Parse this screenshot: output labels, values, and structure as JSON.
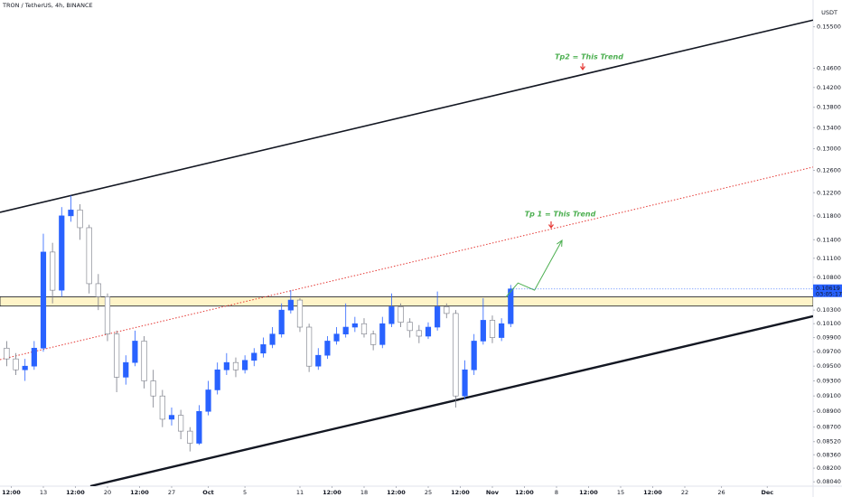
{
  "chart_data": {
    "type": "candlestick",
    "title": "TRON / TetherUS, 4h, BINANCE",
    "currency": "USDT",
    "log": true,
    "grid": false,
    "up_color": "#2962ff",
    "down_color": "#ffffff",
    "wick_color": "#787b86",
    "x": [
      9,
      10,
      11,
      12,
      13,
      14,
      15,
      16,
      17,
      18,
      19,
      20,
      21,
      22,
      23,
      24,
      25,
      26,
      27,
      28,
      29,
      30,
      31,
      32,
      33,
      34,
      35,
      36,
      37,
      38,
      39,
      40,
      41,
      42,
      43,
      44,
      45,
      46,
      47,
      48,
      49,
      50,
      51,
      52,
      53,
      54,
      55,
      56,
      57,
      58,
      59,
      60,
      61,
      62,
      63,
      64
    ],
    "open": [
      0.0975,
      0.096,
      0.0945,
      0.095,
      0.0975,
      0.112,
      0.106,
      0.118,
      0.119,
      0.116,
      0.107,
      0.105,
      0.0995,
      0.0935,
      0.0955,
      0.0985,
      0.093,
      0.091,
      0.088,
      0.0885,
      0.0865,
      0.085,
      0.089,
      0.0918,
      0.0945,
      0.0955,
      0.0945,
      0.0958,
      0.0968,
      0.098,
      0.0995,
      0.103,
      0.1045,
      0.1005,
      0.095,
      0.0965,
      0.0985,
      0.0995,
      0.1005,
      0.101,
      0.0995,
      0.098,
      0.101,
      0.1035,
      0.1012,
      0.1,
      0.0992,
      0.1005,
      0.1035,
      0.1025,
      0.091,
      0.0945,
      0.0985,
      0.1015,
      0.099,
      0.101
    ],
    "high": [
      0.0985,
      0.0968,
      0.096,
      0.0985,
      0.115,
      0.1135,
      0.1195,
      0.1215,
      0.12,
      0.1165,
      0.1085,
      0.1055,
      0.1,
      0.0965,
      0.1,
      0.0992,
      0.0945,
      0.0918,
      0.0895,
      0.0892,
      0.087,
      0.0898,
      0.093,
      0.0955,
      0.0968,
      0.0962,
      0.0965,
      0.0975,
      0.099,
      0.1005,
      0.104,
      0.106,
      0.1048,
      0.101,
      0.0975,
      0.0992,
      0.1005,
      0.104,
      0.102,
      0.1018,
      0.1,
      0.102,
      0.1055,
      0.104,
      0.1018,
      0.1008,
      0.1012,
      0.1058,
      0.104,
      0.103,
      0.0958,
      0.0995,
      0.1048,
      0.1022,
      0.1018,
      0.1068
    ],
    "low": [
      0.095,
      0.0938,
      0.093,
      0.0945,
      0.097,
      0.104,
      0.105,
      0.117,
      0.114,
      0.1055,
      0.103,
      0.0985,
      0.0915,
      0.0925,
      0.095,
      0.092,
      0.0895,
      0.087,
      0.0872,
      0.0855,
      0.084,
      0.0848,
      0.0885,
      0.0912,
      0.0938,
      0.0935,
      0.094,
      0.095,
      0.0962,
      0.0975,
      0.099,
      0.1025,
      0.0998,
      0.0942,
      0.0945,
      0.096,
      0.098,
      0.099,
      0.0998,
      0.099,
      0.0972,
      0.0975,
      0.1005,
      0.1005,
      0.099,
      0.0982,
      0.0988,
      0.1,
      0.1018,
      0.0895,
      0.0905,
      0.0938,
      0.098,
      0.0982,
      0.0985,
      0.1005
    ],
    "close": [
      0.096,
      0.0945,
      0.095,
      0.0975,
      0.112,
      0.106,
      0.118,
      0.119,
      0.116,
      0.107,
      0.105,
      0.0995,
      0.0935,
      0.0955,
      0.0985,
      0.093,
      0.091,
      0.088,
      0.0885,
      0.0865,
      0.085,
      0.089,
      0.0918,
      0.0945,
      0.0955,
      0.0945,
      0.0958,
      0.0968,
      0.098,
      0.0995,
      0.103,
      0.1045,
      0.1005,
      0.095,
      0.0965,
      0.0985,
      0.0995,
      0.1005,
      0.101,
      0.0995,
      0.098,
      0.101,
      0.1035,
      0.1012,
      0.1,
      0.0992,
      0.1005,
      0.1035,
      0.1025,
      0.091,
      0.0945,
      0.0985,
      0.1015,
      0.099,
      0.101,
      0.1062
    ],
    "last_price": 0.10619,
    "countdown": "03:05:17",
    "last_price_color": "#2962ff",
    "xlim": [
      8.27,
      97
    ],
    "ylim": [
      0.0799,
      0.1611
    ],
    "xticks": [
      {
        "value": 9.5,
        "label": "12:00"
      },
      13,
      {
        "value": 16.5,
        "label": "12:00"
      },
      20,
      {
        "value": 23.5,
        "label": "12:00"
      },
      27,
      {
        "value": 31,
        "label": "Oct"
      },
      {
        "value": 35,
        "label": "5"
      },
      {
        "value": 41,
        "label": "11"
      },
      {
        "value": 44.5,
        "label": "12:00"
      },
      {
        "value": 48,
        "label": "18"
      },
      {
        "value": 51.5,
        "label": "12:00"
      },
      {
        "value": 55,
        "label": "25"
      },
      {
        "value": 58.5,
        "label": "12:00"
      },
      {
        "value": 62,
        "label": "Nov"
      },
      {
        "value": 65.5,
        "label": "12:00"
      },
      {
        "value": 69,
        "label": "8"
      },
      {
        "value": 72.5,
        "label": "12:00"
      },
      {
        "value": 76,
        "label": "15"
      },
      {
        "value": 79.5,
        "label": "12:00"
      },
      {
        "value": 83,
        "label": "22"
      },
      {
        "value": 87,
        "label": "26"
      },
      {
        "value": 92,
        "label": "Dec"
      }
    ],
    "yticks": [
      {
        "value": 0.155,
        "label": "0.15500"
      },
      {
        "value": 0.146,
        "label": "0.14600"
      },
      {
        "value": 0.142,
        "label": "0.14200"
      },
      {
        "value": 0.138,
        "label": "0.13800"
      },
      {
        "value": 0.134,
        "label": "0.13400"
      },
      {
        "value": 0.13,
        "label": "0.13000"
      },
      {
        "value": 0.126,
        "label": "0.12600"
      },
      {
        "value": 0.122,
        "label": "0.12200"
      },
      {
        "value": 0.118,
        "label": "0.11800"
      },
      {
        "value": 0.114,
        "label": "0.11400"
      },
      {
        "value": 0.111,
        "label": "0.11100"
      },
      {
        "value": 0.108,
        "label": "0.10800"
      },
      {
        "value": 0.103,
        "label": "0.10300"
      },
      {
        "value": 0.101,
        "label": "0.10100"
      },
      {
        "value": 0.099,
        "label": "0.09900"
      },
      {
        "value": 0.097,
        "label": "0.09700"
      },
      {
        "value": 0.095,
        "label": "0.09500"
      },
      {
        "value": 0.093,
        "label": "0.09300"
      },
      {
        "value": 0.091,
        "label": "0.09100"
      },
      {
        "value": 0.089,
        "label": "0.08900"
      },
      {
        "value": 0.087,
        "label": "0.08700"
      },
      {
        "value": 0.0852,
        "label": "0.08520"
      },
      {
        "value": 0.0836,
        "label": "0.08360"
      },
      {
        "value": 0.082,
        "label": "0.08200"
      },
      {
        "value": 0.0804,
        "label": "0.08040"
      }
    ],
    "zone": {
      "from": 0.1036,
      "to": 0.105,
      "color": "#fff4c8",
      "border": "#131722"
    },
    "trendlines": [
      {
        "points": [
          [
            8.27,
            0.1186
          ],
          [
            97,
            0.1565
          ]
        ],
        "color": "#131722",
        "width": 1.6,
        "dash": "none"
      },
      {
        "points": [
          [
            8.27,
            0.0959
          ],
          [
            97,
            0.1266
          ]
        ],
        "color": "#e53935",
        "width": 1,
        "dash": "1.5 2"
      },
      {
        "points": [
          [
            18.13,
            0.0799
          ],
          [
            97,
            0.1021
          ]
        ],
        "color": "#131722",
        "width": 2.4,
        "dash": "none"
      }
    ],
    "projection": {
      "points": [
        [
          63.5,
          0.105
        ],
        [
          64.8,
          0.1071
        ],
        [
          66.6,
          0.106
        ],
        [
          69.6,
          0.1139
        ]
      ],
      "color": "#4caf50"
    },
    "annotations": [
      {
        "text": "Tp2 = This Trend"
      },
      {
        "text": "Tp 1 = This Trend"
      }
    ]
  }
}
